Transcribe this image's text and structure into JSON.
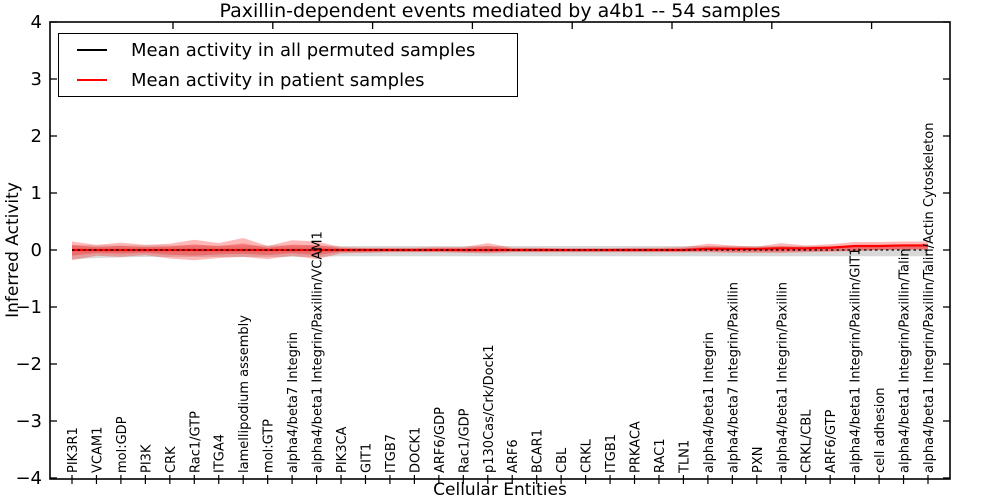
{
  "chart_data": {
    "type": "line",
    "title": "Paxillin-dependent events mediated by a4b1 -- 54 samples",
    "xlabel": "Cellular Entities",
    "ylabel": "Inferred Activity",
    "ylim": [
      -4,
      4
    ],
    "ytick_values": [
      4,
      3,
      2,
      1,
      0,
      -1,
      -2,
      -3,
      -4
    ],
    "ytick_labels": [
      "4",
      "3",
      "2",
      "1",
      "0",
      "−1",
      "−2",
      "−3",
      "−4"
    ],
    "grid": false,
    "legend_position": "upper-left",
    "categories": [
      "PIK3R1",
      "VCAM1",
      "mol:GDP",
      "PI3K",
      "CRK",
      "Rac1/GTP",
      "ITGA4",
      "lamellipodium assembly",
      "mol:GTP",
      "alpha4/beta7 Integrin",
      "alpha4/beta1 Integrin/Paxillin/VCAM1",
      "PIK3CA",
      "GIT1",
      "ITGB7",
      "DOCK1",
      "ARF6/GDP",
      "Rac1/GDP",
      "p130Cas/Crk/Dock1",
      "ARF6",
      "BCAR1",
      "CBL",
      "CRKL",
      "ITGB1",
      "PRKACA",
      "RAC1",
      "TLN1",
      "alpha4/beta1 Integrin",
      "alpha4/beta7 Integrin/Paxillin",
      "PXN",
      "alpha4/beta1 Integrin/Paxillin",
      "CRKL/CBL",
      "ARF6/GTP",
      "alpha4/beta1 Integrin/Paxillin/GIT1",
      "cell adhesion",
      "alpha4/beta1 Integrin/Paxillin/Talin",
      "alpha4/beta1 Integrin/Paxillin/Talin/Actin Cytoskeleton"
    ],
    "series": [
      {
        "name": "Mean activity in all permuted samples",
        "color": "#000000",
        "line_style": "dashed",
        "values": [
          0,
          0,
          0,
          0,
          0,
          0,
          0,
          0,
          0,
          0,
          0,
          0,
          0,
          0,
          0,
          0,
          0,
          0,
          0,
          0,
          0,
          0,
          0,
          0,
          0,
          0,
          0,
          0,
          0,
          0,
          0,
          0,
          0,
          0,
          0,
          0
        ],
        "band": {
          "color": "#999999",
          "upper": [
            0.09,
            0.08,
            0.08,
            0.08,
            0.08,
            0.08,
            0.08,
            0.08,
            0.08,
            0.08,
            0.08,
            0.07,
            0.07,
            0.07,
            0.07,
            0.07,
            0.07,
            0.07,
            0.07,
            0.07,
            0.07,
            0.07,
            0.07,
            0.07,
            0.07,
            0.07,
            0.07,
            0.07,
            0.07,
            0.07,
            0.07,
            0.07,
            0.07,
            0.07,
            0.08,
            0.08
          ],
          "lower": [
            -0.16,
            -0.14,
            -0.13,
            -0.12,
            -0.12,
            -0.12,
            -0.12,
            -0.12,
            -0.12,
            -0.12,
            -0.12,
            -0.11,
            -0.11,
            -0.11,
            -0.11,
            -0.11,
            -0.11,
            -0.11,
            -0.11,
            -0.11,
            -0.11,
            -0.11,
            -0.11,
            -0.11,
            -0.11,
            -0.11,
            -0.11,
            -0.11,
            -0.11,
            -0.11,
            -0.11,
            -0.11,
            -0.11,
            -0.11,
            -0.11,
            -0.11
          ]
        }
      },
      {
        "name": "Mean activity in patient samples",
        "color": "#ff0000",
        "line_style": "solid",
        "values": [
          0,
          0,
          0,
          0,
          0,
          0,
          0,
          0,
          0,
          0,
          0,
          0,
          0,
          0,
          0,
          0,
          0,
          0,
          0,
          0,
          0,
          0,
          0,
          0,
          0,
          0,
          0.02,
          0.02,
          0.02,
          0.03,
          0.03,
          0.04,
          0.07,
          0.07,
          0.08,
          0.08
        ],
        "band": {
          "color": "#ff0000",
          "upper": [
            0.15,
            0.09,
            0.13,
            0.09,
            0.11,
            0.18,
            0.12,
            0.21,
            0.07,
            0.17,
            0.15,
            0.05,
            0.04,
            0.04,
            0.04,
            0.05,
            0.05,
            0.12,
            0.04,
            0.04,
            0.03,
            0.03,
            0.03,
            0.04,
            0.04,
            0.05,
            0.11,
            0.08,
            0.06,
            0.12,
            0.08,
            0.1,
            0.14,
            0.14,
            0.15,
            0.15
          ],
          "lower": [
            -0.18,
            -0.1,
            -0.12,
            -0.09,
            -0.15,
            -0.18,
            -0.14,
            -0.12,
            -0.16,
            -0.1,
            -0.16,
            -0.06,
            -0.05,
            -0.04,
            -0.04,
            -0.04,
            -0.05,
            -0.06,
            -0.04,
            -0.04,
            -0.04,
            -0.04,
            -0.04,
            -0.04,
            -0.04,
            -0.04,
            -0.04,
            -0.05,
            -0.05,
            -0.05,
            -0.04,
            -0.03,
            -0.02,
            0.0,
            0.01,
            0.01
          ]
        }
      }
    ]
  }
}
